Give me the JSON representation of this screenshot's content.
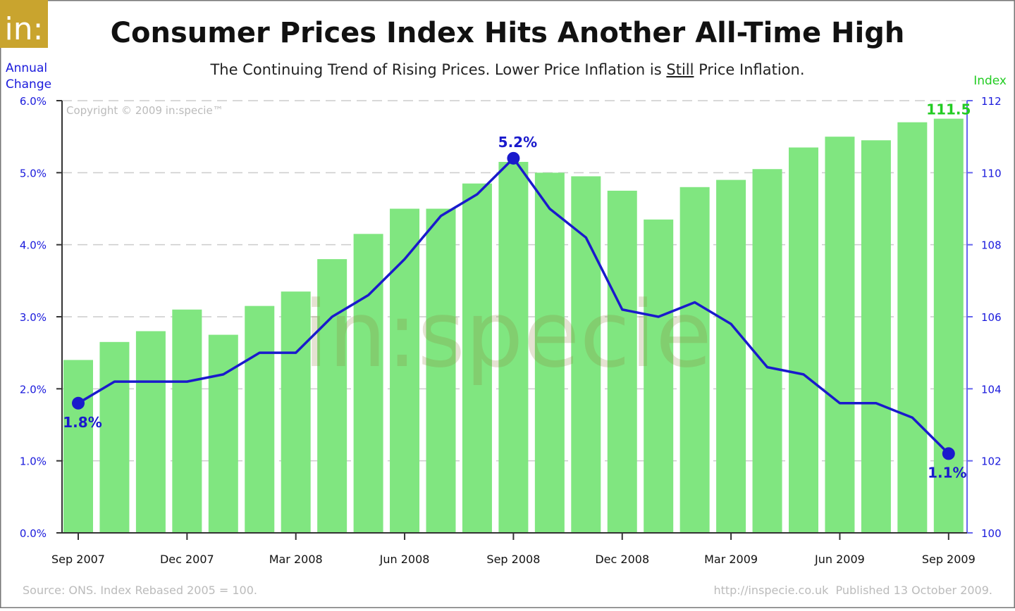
{
  "logo": {
    "text": "in:",
    "color": "#c9a42e"
  },
  "title": "Consumer Prices Index Hits Another All-Time High",
  "subtitle": {
    "before": "The Continuing Trend of Rising Prices. Lower Price Inflation is ",
    "emphasis": "Still",
    "after": " Price Inflation."
  },
  "copyright": "Copyright © 2009 in:specie™",
  "watermark": "in:specie",
  "footer": {
    "source": "Source: ONS. Index Rebased 2005 = 100.",
    "published": "http://inspecie.co.uk  Published 13 October 2009."
  },
  "chart_data": {
    "type": "bar+line",
    "title": "Consumer Prices Index Hits Another All-Time High",
    "left_axis": {
      "label": "Annual Change",
      "range": [
        0,
        6
      ],
      "ticks": [
        "0.0%",
        "1.0%",
        "2.0%",
        "3.0%",
        "4.0%",
        "5.0%",
        "6.0%"
      ],
      "color": "#1a1adc"
    },
    "right_axis": {
      "label": "Index",
      "range": [
        100,
        112
      ],
      "ticks": [
        "100",
        "102",
        "104",
        "106",
        "108",
        "110",
        "112"
      ],
      "color": "#22cc22"
    },
    "x_ticks": [
      "Sep 2007",
      "Dec 2007",
      "Mar 2008",
      "Jun 2008",
      "Sep 2008",
      "Dec 2008",
      "Mar 2009",
      "Jun 2009",
      "Sep 2009"
    ],
    "categories": [
      "Sep 2007",
      "Oct 2007",
      "Nov 2007",
      "Dec 2007",
      "Jan 2008",
      "Feb 2008",
      "Mar 2008",
      "Apr 2008",
      "May 2008",
      "Jun 2008",
      "Jul 2008",
      "Aug 2008",
      "Sep 2008",
      "Oct 2008",
      "Nov 2008",
      "Dec 2008",
      "Jan 2009",
      "Feb 2009",
      "Mar 2009",
      "Apr 2009",
      "May 2009",
      "Jun 2009",
      "Jul 2009",
      "Aug 2009",
      "Sep 2009"
    ],
    "index_values": [
      104.8,
      105.3,
      105.6,
      106.2,
      105.5,
      106.3,
      106.7,
      107.6,
      108.3,
      109.0,
      109.0,
      109.7,
      110.3,
      110.0,
      109.9,
      109.5,
      108.7,
      109.6,
      109.8,
      110.1,
      110.7,
      111.0,
      110.9,
      111.4,
      111.5
    ],
    "annual_change": [
      1.8,
      2.1,
      2.1,
      2.1,
      2.2,
      2.5,
      2.5,
      3.0,
      3.3,
      3.8,
      4.4,
      4.7,
      5.2,
      4.5,
      4.1,
      3.1,
      3.0,
      3.2,
      2.9,
      2.3,
      2.2,
      1.8,
      1.8,
      1.6,
      1.1
    ],
    "annotations": [
      {
        "category": "Sep 2007",
        "text": "1.8%"
      },
      {
        "category": "Sep 2008",
        "text": "5.2%"
      },
      {
        "category": "Sep 2009",
        "text": "1.1%"
      },
      {
        "category": "Sep 2009",
        "text": "111.5",
        "series": "index"
      }
    ],
    "bar_color": "#80e680",
    "line_color": "#1a1acc",
    "grid": "horizontal dashed"
  }
}
